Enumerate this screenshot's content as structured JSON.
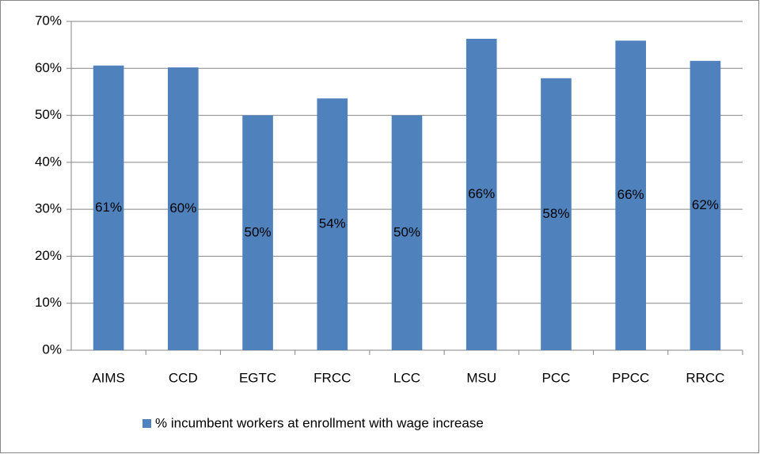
{
  "chart_data": {
    "type": "bar",
    "categories": [
      "AIMS",
      "CCD",
      "EGTC",
      "FRCC",
      "LCC",
      "MSU",
      "PCC",
      "PPCC",
      "RRCC"
    ],
    "series": [
      {
        "name": "% incumbent workers at enrollment with wage increase",
        "color": "#4f81bd",
        "values": [
          60.6,
          60.2,
          50.0,
          53.6,
          50.0,
          66.3,
          57.9,
          65.9,
          61.6
        ],
        "value_labels": [
          "61%",
          "60%",
          "50%",
          "54%",
          "50%",
          "66%",
          "58%",
          "66%",
          "62%"
        ]
      }
    ],
    "ylim": [
      0,
      70
    ],
    "yticks": [
      {
        "value": 0,
        "label": "0%"
      },
      {
        "value": 10,
        "label": "10%"
      },
      {
        "value": 20,
        "label": "20%"
      },
      {
        "value": 30,
        "label": "30%"
      },
      {
        "value": 40,
        "label": "40%"
      },
      {
        "value": 50,
        "label": "50%"
      },
      {
        "value": 60,
        "label": "60%"
      },
      {
        "value": 70,
        "label": "70%"
      }
    ],
    "grid": true,
    "legend": "bottom"
  }
}
